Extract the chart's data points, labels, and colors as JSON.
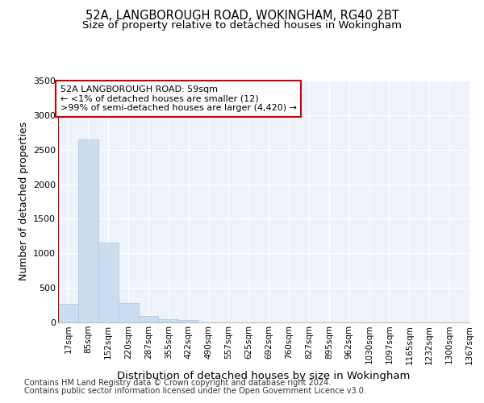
{
  "title": "52A, LANGBOROUGH ROAD, WOKINGHAM, RG40 2BT",
  "subtitle": "Size of property relative to detached houses in Wokingham",
  "xlabel": "Distribution of detached houses by size in Wokingham",
  "ylabel": "Number of detached properties",
  "bar_values": [
    270,
    2650,
    1150,
    285,
    90,
    50,
    30,
    5,
    3,
    2,
    1,
    1,
    0,
    0,
    0,
    0,
    0,
    0,
    0,
    0
  ],
  "bar_color": "#ccddf0",
  "bar_edge_color": "#aec8e8",
  "categories": [
    "17sqm",
    "85sqm",
    "152sqm",
    "220sqm",
    "287sqm",
    "355sqm",
    "422sqm",
    "490sqm",
    "557sqm",
    "625sqm",
    "692sqm",
    "760sqm",
    "827sqm",
    "895sqm",
    "962sqm",
    "1030sqm",
    "1097sqm",
    "1165sqm",
    "1232sqm",
    "1300sqm",
    "1367sqm"
  ],
  "ylim": [
    0,
    3500
  ],
  "yticks": [
    0,
    500,
    1000,
    1500,
    2000,
    2500,
    3000,
    3500
  ],
  "annotation_text": "52A LANGBOROUGH ROAD: 59sqm\n← <1% of detached houses are smaller (12)\n>99% of semi-detached houses are larger (4,420) →",
  "annotation_box_color": "#ffffff",
  "annotation_border_color": "#cc0000",
  "vline_color": "#cc0000",
  "footer_line1": "Contains HM Land Registry data © Crown copyright and database right 2024.",
  "footer_line2": "Contains public sector information licensed under the Open Government Licence v3.0.",
  "bg_color": "#eef2fa",
  "grid_color": "#ffffff",
  "title_fontsize": 10.5,
  "subtitle_fontsize": 9.5,
  "axis_label_fontsize": 9,
  "tick_fontsize": 7.5,
  "footer_fontsize": 7.0
}
